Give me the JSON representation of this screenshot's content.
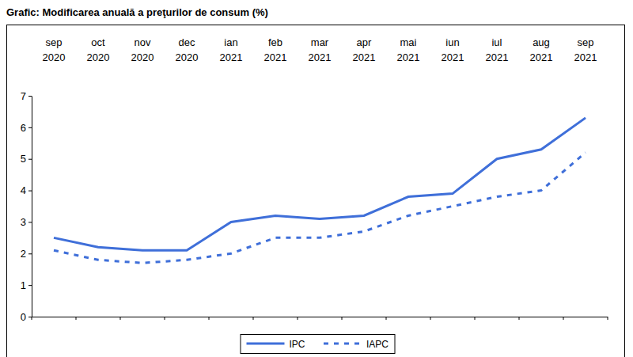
{
  "chart_data": {
    "type": "line",
    "title": "Grafic: Modificarea anuală a preţurilor de consum (%)",
    "categories": [
      "sep 2020",
      "oct 2020",
      "nov 2020",
      "dec 2020",
      "ian 2021",
      "feb 2021",
      "mar 2021",
      "apr 2021",
      "mai 2021",
      "iun 2021",
      "iul 2021",
      "aug 2021",
      "sep 2021"
    ],
    "series": [
      {
        "name": "IPC",
        "color": "#3f6fd9",
        "line_style": "solid",
        "values": [
          2.5,
          2.2,
          2.1,
          2.1,
          3.0,
          3.2,
          3.1,
          3.2,
          3.8,
          3.9,
          5.0,
          5.3,
          6.3
        ]
      },
      {
        "name": "IAPC",
        "color": "#3f6fd9",
        "line_style": "dotted",
        "values": [
          2.1,
          1.8,
          1.7,
          1.8,
          2.0,
          2.5,
          2.5,
          2.7,
          3.2,
          3.5,
          3.8,
          4.0,
          5.2
        ]
      }
    ],
    "ylim": [
      0,
      7
    ],
    "yticks": [
      0,
      1,
      2,
      3,
      4,
      5,
      6,
      7
    ],
    "grid": false,
    "legend": "bottom"
  }
}
